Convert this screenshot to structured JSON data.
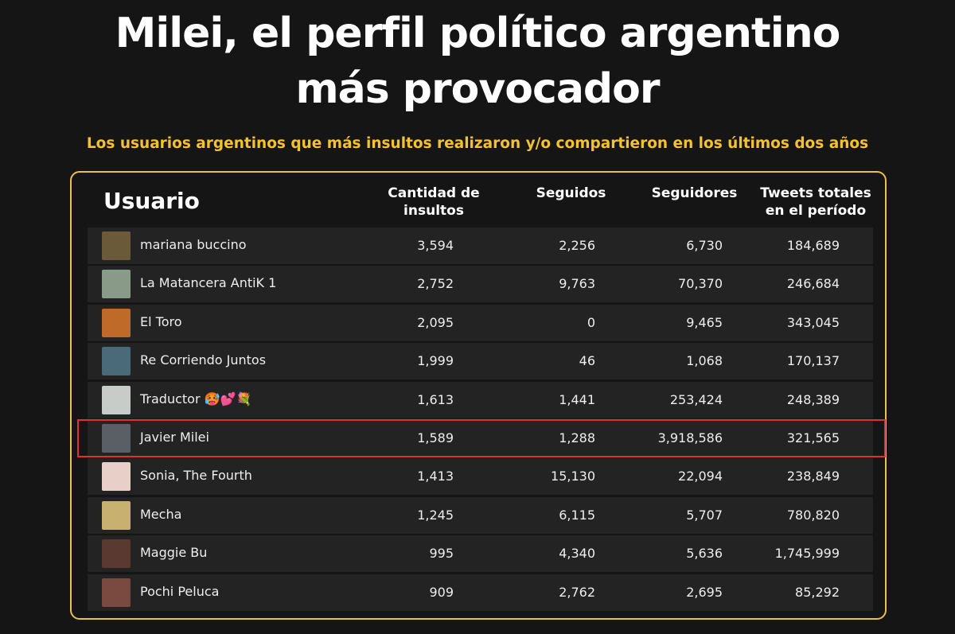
{
  "header": {
    "title_lines": [
      "Milei, el perfil político argentino",
      "más provocador"
    ],
    "subtitle": "Los usuarios argentinos que más insultos realizaron y/o compartieron en los últimos dos años"
  },
  "table": {
    "columns": [
      "Usuario",
      "Cantidad de insultos",
      "Seguidos",
      "Seguidores",
      "Tweets totales en el período"
    ],
    "rows": [
      [
        "mariana buccino",
        "3,594",
        "2,256",
        "6,730",
        "184,689"
      ],
      [
        "La Matancera AntiK 1",
        "2,752",
        "9,763",
        "70,370",
        "246,684"
      ],
      [
        "El Toro",
        "2,095",
        "0",
        "9,465",
        "343,045"
      ],
      [
        "Re Corriendo Juntos",
        "1,999",
        "46",
        "1,068",
        "170,137"
      ],
      [
        "Traductor 🥵💕💐",
        "1,613",
        "1,441",
        "253,424",
        "248,389"
      ],
      [
        "Javier Milei",
        "1,589",
        "1,288",
        "3,918,586",
        "321,565"
      ],
      [
        "Sonia, The Fourth",
        "1,413",
        "15,130",
        "22,094",
        "238,849"
      ],
      [
        "Mecha",
        "1,245",
        "6,115",
        "5,707",
        "780,820"
      ],
      [
        "Maggie Bu",
        "995",
        "4,340",
        "5,636",
        "1,745,999"
      ],
      [
        "Pochi Peluca",
        "909",
        "2,762",
        "2,695",
        "85,292"
      ]
    ]
  }
}
